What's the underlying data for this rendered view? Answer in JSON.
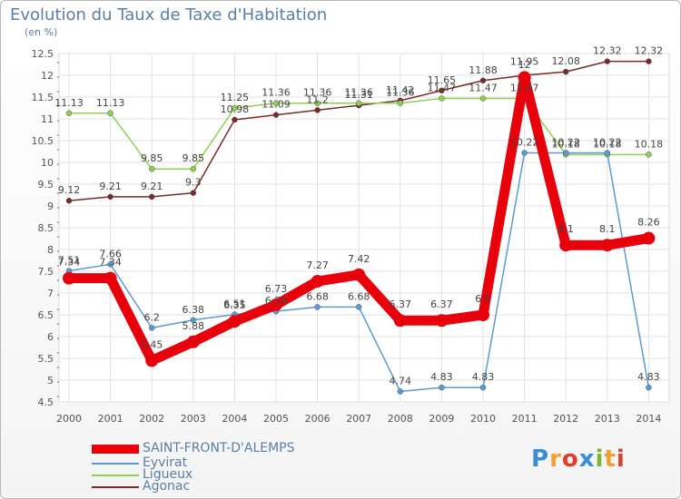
{
  "chart_data": {
    "type": "line",
    "title": "Evolution du Taux de Taxe d'Habitation",
    "subtitle": "(en %)",
    "x": [
      "2000",
      "2001",
      "2002",
      "2003",
      "2004",
      "2005",
      "2006",
      "2007",
      "2008",
      "2009",
      "2010",
      "2011",
      "2012",
      "2013",
      "2014"
    ],
    "ylim": [
      4.5,
      12.5
    ],
    "yticks": [
      "4.5",
      "5",
      "5.5",
      "6",
      "6.5",
      "7",
      "7.5",
      "8",
      "8.5",
      "9",
      "9.5",
      "10",
      "10.5",
      "11",
      "11.5",
      "12",
      "12.5"
    ],
    "grid": true,
    "series": [
      {
        "name": "SAINT-FRONT-D'ALEMPS",
        "color": "#e8000b",
        "values": [
          7.34,
          7.34,
          5.45,
          5.88,
          6.35,
          6.73,
          7.27,
          7.42,
          6.37,
          6.37,
          6.5,
          11.95,
          8.1,
          8.1,
          8.26
        ],
        "labels": [
          "7.34",
          "7.34",
          "5.45",
          "5.88",
          "6.35",
          "6.73",
          "7.27",
          "7.42",
          "6.37",
          "6.37",
          "6.5",
          "11.95",
          "8.1",
          "8.1",
          "8.26"
        ]
      },
      {
        "name": "Eyvirat",
        "color": "#5b9bd5",
        "values": [
          7.51,
          7.66,
          6.2,
          6.38,
          6.51,
          6.58,
          6.68,
          6.68,
          4.74,
          4.83,
          4.83,
          10.22,
          10.22,
          10.22,
          4.83
        ],
        "labels": [
          "7.51",
          "7.66",
          "6.2",
          "6.38",
          "6.51",
          "6.58",
          "6.68",
          "6.68",
          "4.74",
          "4.83",
          "4.83",
          "10.22",
          "10.22",
          "10.22",
          "4.83"
        ]
      },
      {
        "name": "Ligueux",
        "color": "#8fd14f",
        "values": [
          11.13,
          11.13,
          9.85,
          9.85,
          11.25,
          11.36,
          11.36,
          11.36,
          11.36,
          11.47,
          11.47,
          11.47,
          10.18,
          10.18,
          10.18
        ],
        "labels": [
          "11.13",
          "11.13",
          "9.85",
          "9.85",
          "11.25",
          "11.36",
          "11.36",
          "11.36",
          "11.36",
          "11.47",
          "11.47",
          "11.47",
          "10.18",
          "10.18",
          "10.18"
        ]
      },
      {
        "name": "Agonac",
        "color": "#7a2a2a",
        "values": [
          9.12,
          9.21,
          9.21,
          9.3,
          10.98,
          11.09,
          11.2,
          11.31,
          11.42,
          11.65,
          11.88,
          12.0,
          12.08,
          12.32,
          12.32
        ],
        "labels": [
          "9.12",
          "9.21",
          "9.21",
          "9.3",
          "10.98",
          "11.09",
          "11.2",
          "11.31",
          "11.42",
          "11.65",
          "11.88",
          "12",
          "12.08",
          "12.32",
          "12.32"
        ]
      }
    ]
  },
  "legend": {
    "items": [
      "SAINT-FRONT-D'ALEMPS",
      "Eyvirat",
      "Ligueux",
      "Agonac"
    ]
  },
  "brand": {
    "name": "Proxiti"
  }
}
